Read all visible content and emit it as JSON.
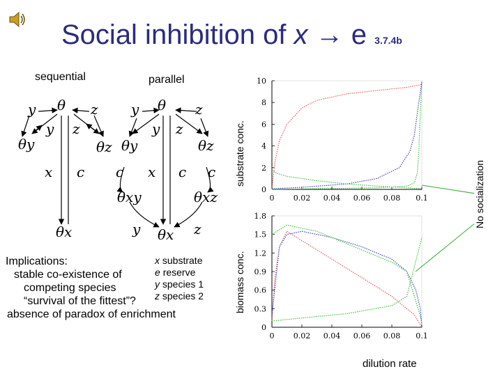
{
  "title": {
    "main": "Social inhibition of ",
    "var_x": "x",
    "arrow": " → ",
    "var_e": "e",
    "section": "3.7.4b"
  },
  "diagram": {
    "sequential_label": "sequential",
    "parallel_label": "parallel",
    "nodes": {
      "y": "y",
      "z": "z",
      "x": "x",
      "c": "c",
      "theta": "θ",
      "theta_x": "θx",
      "theta_y": "θy",
      "theta_z": "θz",
      "theta_xy": "θxy",
      "theta_xz": "θxz"
    }
  },
  "implications": {
    "heading": "Implications:",
    "items": [
      "stable co-existence of",
      "competing species",
      "“survival of the fittest”?",
      "absence of paradox of enrichment"
    ]
  },
  "legend": [
    {
      "var": "x",
      "desc": "substrate"
    },
    {
      "var": "e",
      "desc": "reserve"
    },
    {
      "var": "y",
      "desc": "species 1"
    },
    {
      "var": "z",
      "desc": "species 2"
    }
  ],
  "axes": {
    "top_ylabel": "substrate conc.",
    "bottom_ylabel": "biomass conc.",
    "xlabel": "dilution rate",
    "side_label": "No socialization"
  },
  "colors": {
    "title": "#2b2b80",
    "red": "#e06060",
    "blue": "#4040c0",
    "green": "#40c040"
  },
  "icons": {
    "speaker": "speaker-icon"
  },
  "chart_data": [
    {
      "type": "line",
      "ylabel": "substrate conc.",
      "xlim": [
        0,
        0.1
      ],
      "ylim": [
        0,
        10
      ],
      "x_ticks": [
        "0",
        "0.02",
        "0.04",
        "0.06",
        "0.08",
        "0.1"
      ],
      "y_ticks": [
        "0",
        "2",
        "4",
        "6",
        "8",
        "10"
      ],
      "series": [
        {
          "color": "red",
          "x": [
            0,
            0.002,
            0.005,
            0.01,
            0.02,
            0.03,
            0.05,
            0.07,
            0.09,
            0.098,
            0.1
          ],
          "y": [
            0,
            2.5,
            4.5,
            6.0,
            7.5,
            8.2,
            8.8,
            9.1,
            9.4,
            9.6,
            9.7
          ]
        },
        {
          "color": "blue",
          "x": [
            0,
            0.02,
            0.05,
            0.07,
            0.085,
            0.092,
            0.095,
            0.097,
            0.099,
            0.1
          ],
          "y": [
            0.05,
            0.2,
            0.5,
            1.0,
            2.0,
            3.5,
            5.0,
            7.0,
            9.0,
            9.9
          ]
        },
        {
          "color": "green",
          "x": [
            0,
            0.02,
            0.05,
            0.07,
            0.09,
            0.095,
            0.097,
            0.098,
            0.099,
            0.1
          ],
          "y": [
            0,
            0.05,
            0.1,
            0.15,
            0.3,
            0.6,
            1.5,
            3.5,
            7.0,
            9.8
          ]
        },
        {
          "color": "green",
          "x": [
            0,
            0.003,
            0.01,
            0.03,
            0.05,
            0.07,
            0.09,
            0.1
          ],
          "y": [
            1.8,
            1.5,
            1.2,
            0.8,
            0.5,
            0.3,
            0.15,
            0.05
          ]
        }
      ]
    },
    {
      "type": "line",
      "ylabel": "biomass conc.",
      "xlabel": "dilution rate",
      "xlim": [
        0,
        0.1
      ],
      "ylim": [
        0,
        1.8
      ],
      "x_ticks": [
        "0",
        "0.02",
        "0.04",
        "0.06",
        "0.08",
        "0.1"
      ],
      "y_ticks": [
        "0",
        "0.3",
        "0.6",
        "0.9",
        "1.2",
        "1.5",
        "1.8"
      ],
      "series": [
        {
          "color": "red",
          "x": [
            0,
            0.002,
            0.005,
            0.01,
            0.02,
            0.04,
            0.06,
            0.08,
            0.095,
            0.1
          ],
          "y": [
            0.1,
            0.8,
            1.3,
            1.55,
            1.4,
            1.1,
            0.8,
            0.5,
            0.2,
            0
          ]
        },
        {
          "color": "blue",
          "x": [
            0,
            0.005,
            0.01,
            0.02,
            0.04,
            0.06,
            0.08,
            0.09,
            0.096,
            0.099,
            0.1
          ],
          "y": [
            0.2,
            1.3,
            1.5,
            1.55,
            1.45,
            1.3,
            1.1,
            0.9,
            0.6,
            0.3,
            0
          ]
        },
        {
          "color": "green",
          "x": [
            0,
            0.01,
            0.02,
            0.03,
            0.04,
            0.06,
            0.08,
            0.09,
            0.1
          ],
          "y": [
            1.5,
            1.65,
            1.6,
            1.55,
            1.45,
            1.25,
            1.05,
            0.9,
            0.1
          ]
        },
        {
          "color": "green",
          "x": [
            0,
            0.02,
            0.05,
            0.08,
            0.09,
            0.1
          ],
          "y": [
            0.1,
            0.15,
            0.22,
            0.35,
            0.5,
            1.45
          ]
        }
      ]
    }
  ]
}
